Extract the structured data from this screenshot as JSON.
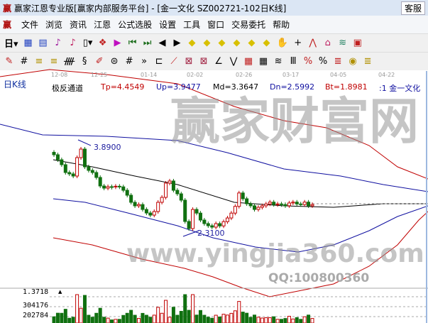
{
  "window": {
    "title": "赢家江恩专业版[赢家内部服务平台] - [金一文化  SZ002721-102日K线]",
    "service_button": "客服",
    "logo": "赢"
  },
  "menu": [
    "文件",
    "浏览",
    "资讯",
    "江恩",
    "公式选股",
    "设置",
    "工具",
    "窗口",
    "交易委托",
    "帮助"
  ],
  "toolbar1": {
    "period": "日",
    "items": [
      "chart-icon",
      "info-icon",
      "indicator3-icon",
      "indicator9-icon",
      "candle-icon",
      "formula-icon",
      "flag-icon",
      "first-icon",
      "last-icon",
      "left-icon",
      "right-icon",
      "diamond-left-icon",
      "diamond-right-icon",
      "diamond-h-icon",
      "diamond-shrink-icon",
      "diamond-expand-icon",
      "diamond-all-icon",
      "hand-icon",
      "crosshair-icon",
      "line-icon",
      "hat-icon",
      "stack-icon",
      "calendar-icon"
    ]
  },
  "toolbar2": {
    "items": [
      "pen-icon",
      "grid-icon",
      "gold1-icon",
      "gold2-icon",
      "comb-icon",
      "spiral-icon",
      "pen2-icon",
      "circle-icon",
      "bars-icon",
      "more-icon",
      "box-icon",
      "fan-icon",
      "square-fan-icon",
      "square-fan2-icon",
      "angle-icon",
      "zigzag-icon",
      "grid-red-icon",
      "grid-dark-icon",
      "lines-icon",
      "ruler-icon",
      "percent-pen-icon",
      "percent-icon",
      "percent-lines-icon",
      "gold-coin-icon",
      "gold-lines-icon"
    ]
  },
  "chart": {
    "period_label": "日K线",
    "dates": [
      "12-08",
      "12-25",
      "01-14",
      "02-02",
      "02-26",
      "03-17",
      "04-05",
      "04-22"
    ],
    "indicator_name": "极反通道",
    "tp": "Tp=4.4549",
    "up": "Up=3.9477",
    "md": "Md=3.3647",
    "dn": "Dn=2.5992",
    "bt": "Bt=1.8981",
    "stock": ":1  金一文化",
    "high_label": "3.8900",
    "low_label": "2.3100",
    "colors": {
      "up": "#c00000",
      "down": "#107010",
      "outer": "#c00000",
      "inner": "#1010a0",
      "mid": "#000000"
    },
    "closes": [
      3.646,
      3.564,
      3.483,
      3.355,
      3.332,
      3.297,
      3.599,
      3.739,
      3.448,
      3.39,
      3.355,
      3.274,
      3.134,
      3.099,
      3.123,
      3.12,
      3.13,
      3.12,
      3.064,
      2.983,
      2.867,
      2.809,
      2.83,
      2.75,
      2.692,
      2.657,
      2.716,
      2.867,
      2.948,
      3.181,
      3.216,
      3.064,
      3.006,
      2.902,
      2.553,
      2.437,
      2.75,
      2.69,
      2.576,
      2.518,
      2.483,
      2.46,
      2.518,
      2.48,
      2.55,
      2.61,
      2.69,
      2.8,
      3.02,
      2.925,
      2.843,
      2.81,
      2.75,
      2.785,
      2.81,
      2.84,
      2.87,
      2.83,
      2.84,
      2.83,
      2.81,
      2.856,
      2.87,
      2.84,
      2.83,
      2.87,
      2.81,
      2.83
    ]
  },
  "volume": {
    "scale_label": "1.3718",
    "ticks": [
      "304176",
      "202784"
    ]
  },
  "watermark": {
    "qq": "QQ:100800360",
    "brand": "赢家财富网",
    "url": "www.yingjia360.com"
  }
}
